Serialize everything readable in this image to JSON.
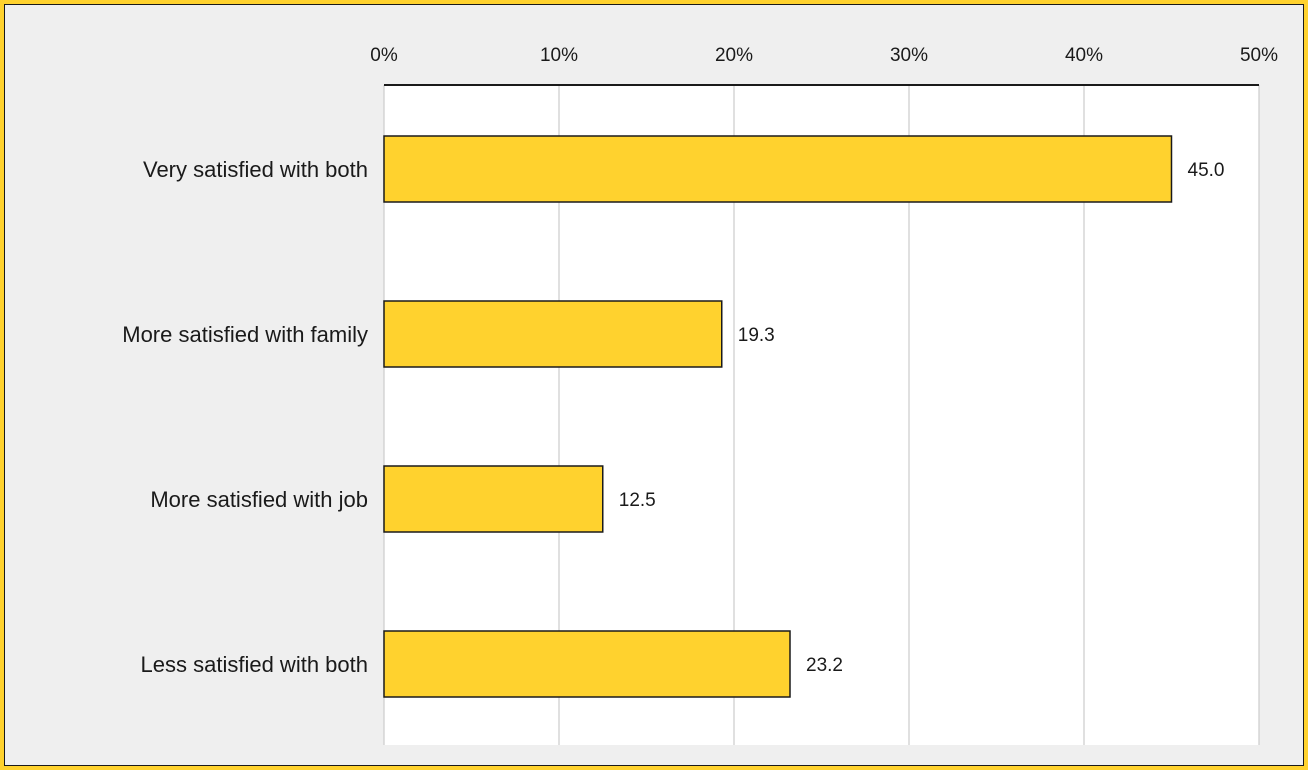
{
  "chart_data": {
    "type": "bar",
    "orientation": "horizontal",
    "categories": [
      "Very satisfied with both",
      "More satisfied with family",
      "More satisfied with job",
      "Less satisfied with both"
    ],
    "values": [
      45.0,
      19.3,
      12.5,
      23.2
    ],
    "value_labels": [
      "45.0",
      "19.3",
      "12.5",
      "23.2"
    ],
    "title": "",
    "xlabel": "",
    "ylabel": "",
    "xlim": [
      0,
      50
    ],
    "x_ticks": [
      0,
      10,
      20,
      30,
      40,
      50
    ],
    "x_tick_labels": [
      "0%",
      "10%",
      "20%",
      "30%",
      "40%",
      "50%"
    ],
    "x_axis_position": "top",
    "grid": "vertical",
    "legend": "none",
    "colors": {
      "bar_fill": "#ffd22e",
      "bar_stroke": "#1a1a1a",
      "background": "#efefef",
      "plot_background": "#ffffff",
      "frame": "#ffd22e",
      "grid": "#cccccc"
    }
  }
}
